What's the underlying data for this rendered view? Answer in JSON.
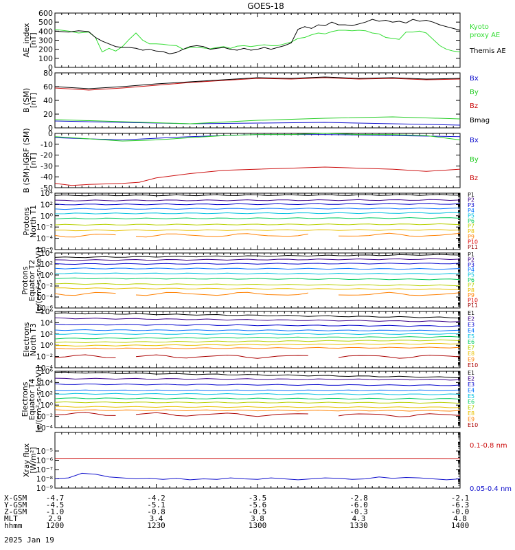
{
  "figure": {
    "title": "GOES-18",
    "date": "2025 Jan 19",
    "colors": {
      "black": "#000000",
      "green": "#22cc22",
      "red": "#cc1010",
      "blue": "#1010cc",
      "ae_green": "#33dd33"
    }
  },
  "xaxis": {
    "ticks": [
      "1200",
      "1230",
      "1300",
      "1330",
      "1400"
    ],
    "rows": [
      {
        "label": "X-GSM",
        "values": [
          "-4.7",
          "-4.2",
          "-3.5",
          "-2.8",
          "-2.1"
        ]
      },
      {
        "label": "Y-GSM",
        "values": [
          "-4.5",
          "-5.1",
          "-5.6",
          "-6.0",
          "-6.3"
        ]
      },
      {
        "label": "Z-GSM",
        "values": [
          "-1.0",
          "-0.8",
          "-0.5",
          "-0.3",
          "-0.0"
        ]
      },
      {
        "label": "MLT",
        "values": [
          "2.9",
          "3.4",
          "3.8",
          "4.3",
          "4.8"
        ]
      },
      {
        "label": "hhmm",
        "values": [
          "1200",
          "1230",
          "1300",
          "1330",
          "1400"
        ]
      }
    ]
  },
  "chart_data": [
    {
      "type": "line",
      "id": "ae",
      "ylabel": [
        "AE_index",
        "[nT]"
      ],
      "ylim": [
        0,
        600
      ],
      "log": false,
      "ticks": [
        "0",
        "100",
        "200",
        "300",
        "400",
        "500",
        "600"
      ],
      "tick_values": [
        0,
        100,
        200,
        300,
        400,
        500,
        600
      ],
      "series": [
        {
          "name": "Kyoto proxy AE",
          "legend": [
            "Kyoto",
            "proxy AE"
          ],
          "color": "#33dd33",
          "x": [
            0,
            2,
            4,
            7,
            10,
            12,
            14,
            16,
            18,
            20,
            22,
            24,
            26,
            28,
            30,
            32,
            34,
            36,
            38,
            40,
            42,
            44,
            46,
            48,
            50,
            52,
            54,
            56,
            58,
            60,
            62,
            64,
            66,
            68,
            70,
            72,
            74,
            76,
            78,
            80,
            82,
            84,
            86,
            88,
            90,
            92,
            94,
            96,
            98,
            100,
            102,
            104,
            106,
            108,
            110,
            112,
            114,
            116,
            118,
            120
          ],
          "y": [
            420,
            410,
            400,
            380,
            390,
            330,
            170,
            210,
            180,
            230,
            310,
            380,
            300,
            260,
            260,
            255,
            245,
            240,
            200,
            220,
            220,
            215,
            205,
            220,
            230,
            210,
            235,
            240,
            230,
            240,
            250,
            240,
            240,
            260,
            280,
            320,
            330,
            360,
            380,
            370,
            395,
            410,
            410,
            405,
            410,
            405,
            380,
            370,
            330,
            320,
            310,
            390,
            390,
            400,
            380,
            310,
            240,
            200,
            180,
            170
          ]
        },
        {
          "name": "Themis AE",
          "legend": [
            "Themis AE"
          ],
          "color": "#000000",
          "x": [
            0,
            2,
            4,
            7,
            10,
            12,
            14,
            16,
            18,
            20,
            22,
            24,
            26,
            28,
            30,
            32,
            34,
            36,
            38,
            40,
            42,
            44,
            46,
            48,
            50,
            52,
            54,
            56,
            58,
            60,
            62,
            64,
            66,
            68,
            70,
            72,
            74,
            76,
            78,
            80,
            82,
            84,
            86,
            88,
            90,
            92,
            94,
            96,
            98,
            100,
            102,
            104,
            106,
            108,
            110,
            112,
            114,
            116,
            118,
            120
          ],
          "y": [
            400,
            395,
            390,
            405,
            395,
            330,
            290,
            260,
            230,
            220,
            220,
            210,
            190,
            200,
            180,
            175,
            150,
            165,
            200,
            230,
            240,
            230,
            200,
            210,
            220,
            200,
            190,
            210,
            190,
            200,
            220,
            200,
            220,
            240,
            270,
            420,
            450,
            430,
            470,
            460,
            500,
            470,
            470,
            460,
            480,
            500,
            530,
            510,
            520,
            500,
            510,
            490,
            530,
            510,
            520,
            500,
            470,
            450,
            430,
            410
          ]
        }
      ]
    },
    {
      "type": "line",
      "id": "b_sm",
      "ylabel": [
        "B (SM)",
        "[nT]"
      ],
      "ylim": [
        0,
        80
      ],
      "log": false,
      "ticks": [
        "0",
        "20",
        "40",
        "60",
        "80"
      ],
      "tick_values": [
        0,
        20,
        40,
        60,
        80
      ],
      "series": [
        {
          "name": "Bx",
          "color": "#1010cc",
          "x": [
            0,
            20,
            40,
            60,
            80,
            100,
            120
          ],
          "y": [
            10,
            8,
            6,
            7,
            8,
            6,
            4
          ]
        },
        {
          "name": "By",
          "color": "#22cc22",
          "x": [
            0,
            20,
            40,
            60,
            80,
            100,
            120
          ],
          "y": [
            12,
            9,
            6,
            11,
            14,
            16,
            13
          ]
        },
        {
          "name": "Bz",
          "color": "#cc1010",
          "x": [
            0,
            10,
            20,
            30,
            40,
            50,
            60,
            70,
            80,
            90,
            100,
            110,
            120
          ],
          "y": [
            58,
            55,
            58,
            62,
            66,
            69,
            72,
            71,
            73,
            71,
            72,
            70,
            71
          ]
        },
        {
          "name": "Bmag",
          "color": "#000000",
          "x": [
            0,
            10,
            20,
            30,
            40,
            50,
            60,
            70,
            80,
            90,
            100,
            110,
            120
          ],
          "y": [
            60,
            57,
            60,
            64,
            67,
            70,
            73,
            72,
            74,
            72,
            73,
            71,
            72
          ]
        }
      ]
    },
    {
      "type": "line",
      "id": "b_igrf",
      "ylabel": [
        "B (SM)-IGRF (SM)",
        "[nT]"
      ],
      "ylim": [
        -50,
        0
      ],
      "log": false,
      "ticks": [
        "-50",
        "-40",
        "-30",
        "-20",
        "-10",
        "0"
      ],
      "tick_values": [
        -50,
        -40,
        -30,
        -20,
        -10,
        0
      ],
      "series": [
        {
          "name": "Bx",
          "color": "#1010cc",
          "x": [
            0,
            20,
            40,
            60,
            80,
            100,
            120
          ],
          "y": [
            -4,
            -6,
            -3,
            -1,
            -1,
            -2,
            -3
          ]
        },
        {
          "name": "By",
          "color": "#22cc22",
          "x": [
            0,
            10,
            20,
            30,
            40,
            50,
            60,
            70,
            80,
            90,
            100,
            110,
            120
          ],
          "y": [
            -3,
            -5,
            -7,
            -6,
            -4,
            -2,
            -1,
            -1,
            0,
            -1,
            -1,
            -2,
            -6
          ]
        },
        {
          "name": "Bz",
          "color": "#cc1010",
          "x": [
            0,
            5,
            10,
            20,
            25,
            30,
            40,
            50,
            60,
            70,
            80,
            90,
            100,
            110,
            120
          ],
          "y": [
            -46,
            -48,
            -47,
            -46,
            -45,
            -41,
            -37,
            -34,
            -33,
            -32,
            -31,
            -32,
            -33,
            -35,
            -33
          ]
        }
      ]
    },
    {
      "type": "line",
      "id": "protons_t1",
      "ylabel": [
        "Protons",
        "North T1"
      ],
      "ylim": [
        -6,
        4
      ],
      "log": true,
      "ticks": [
        "10⁻⁶",
        "10⁻⁴",
        "10⁻²",
        "10⁰",
        "10²",
        "10⁴"
      ],
      "tick_values": [
        -6,
        -4,
        -2,
        0,
        2,
        4
      ],
      "channels": [
        {
          "name": "P1",
          "color": "#000000",
          "y0": 3.6,
          "y1": 3.7
        },
        {
          "name": "P2",
          "color": "#3a0088",
          "y0": 2.7,
          "y1": 2.8
        },
        {
          "name": "P3",
          "color": "#0000cc",
          "y0": 2.0,
          "y1": 2.1
        },
        {
          "name": "P4",
          "color": "#0070ff",
          "y0": 1.2,
          "y1": 1.3
        },
        {
          "name": "P5",
          "color": "#00c0e0",
          "y0": 0.4,
          "y1": 0.5
        },
        {
          "name": "P6",
          "color": "#00cc60",
          "y0": -0.5,
          "y1": -0.4
        },
        {
          "name": "P7",
          "color": "#b8d000",
          "y0": -1.6,
          "y1": -1.5
        },
        {
          "name": "P8",
          "color": "#e8c000",
          "y0": -2.6,
          "y1": -2.5
        },
        {
          "name": "P9",
          "color": "#ff8000",
          "y0": -3.5,
          "y1": -3.4,
          "gappy": true
        },
        {
          "name": "P10",
          "color": "#dd0000",
          "y0": null,
          "y1": null
        },
        {
          "name": "P11",
          "color": "#990000",
          "y0": null,
          "y1": null
        }
      ]
    },
    {
      "type": "line",
      "id": "protons_t2",
      "ylabel": [
        "Protons",
        "Equator T2",
        "[p/(cm²-s-sr-keV)]"
      ],
      "ylim": [
        -6,
        4
      ],
      "log": true,
      "ticks": [
        "10⁻⁶",
        "10⁻⁴",
        "10⁻²",
        "10⁰",
        "10²",
        "10⁴"
      ],
      "tick_values": [
        -6,
        -4,
        -2,
        0,
        2,
        4
      ],
      "channels": [
        {
          "name": "P1",
          "color": "#000000",
          "y0": 3.2,
          "y1": 3.7
        },
        {
          "name": "P2",
          "color": "#3a0088",
          "y0": 2.7,
          "y1": 2.9
        },
        {
          "name": "P3",
          "color": "#0000cc",
          "y0": 2.0,
          "y1": 2.1
        },
        {
          "name": "P4",
          "color": "#0070ff",
          "y0": 1.2,
          "y1": 1.1
        },
        {
          "name": "P5",
          "color": "#00c0e0",
          "y0": 0.3,
          "y1": 0.2
        },
        {
          "name": "P6",
          "color": "#00cc60",
          "y0": -0.6,
          "y1": -0.8
        },
        {
          "name": "P7",
          "color": "#b8d000",
          "y0": -1.6,
          "y1": -1.9
        },
        {
          "name": "P8",
          "color": "#e8c000",
          "y0": -2.4,
          "y1": -2.6
        },
        {
          "name": "P9",
          "color": "#ff8000",
          "y0": -3.4,
          "y1": -3.5,
          "gappy": true
        },
        {
          "name": "P10",
          "color": "#dd0000",
          "y0": null,
          "y1": null
        },
        {
          "name": "P11",
          "color": "#990000",
          "y0": null,
          "y1": null
        }
      ]
    },
    {
      "type": "line",
      "id": "electrons_t3",
      "ylabel": [
        "Electrons",
        "North T3"
      ],
      "ylim": [
        -4,
        6
      ],
      "log": true,
      "ticks": [
        "10⁻⁴",
        "10⁻²",
        "10⁰",
        "10²",
        "10⁴",
        "10⁶"
      ],
      "tick_values": [
        -4,
        -2,
        0,
        2,
        4,
        6
      ],
      "channels": [
        {
          "name": "E1",
          "color": "#000000",
          "y0": 5.7,
          "y1": 4.9
        },
        {
          "name": "E2",
          "color": "#3a0088",
          "y0": 4.8,
          "y1": 4.2
        },
        {
          "name": "E3",
          "color": "#0000cc",
          "y0": 3.7,
          "y1": 3.4
        },
        {
          "name": "E4",
          "color": "#0070ff",
          "y0": 2.7,
          "y1": 2.6
        },
        {
          "name": "E5",
          "color": "#00c0e0",
          "y0": 2.0,
          "y1": 2.0
        },
        {
          "name": "E6",
          "color": "#00cc60",
          "y0": 1.2,
          "y1": 1.5
        },
        {
          "name": "E7",
          "color": "#b8d000",
          "y0": 0.5,
          "y1": 0.9
        },
        {
          "name": "E8",
          "color": "#e8c000",
          "y0": -0.1,
          "y1": 0.3
        },
        {
          "name": "E9",
          "color": "#ff8000",
          "y0": -0.6,
          "y1": -0.4
        },
        {
          "name": "E10",
          "color": "#aa0000",
          "y0": -2.0,
          "y1": -2.0,
          "gappy": true
        }
      ]
    },
    {
      "type": "line",
      "id": "electrons_t4",
      "ylabel": [
        "Electrons",
        "Equator T4",
        "[e/(cm²-s-sr-keV)]"
      ],
      "ylim": [
        -4,
        6
      ],
      "log": true,
      "ticks": [
        "10⁻⁴",
        "10⁻²",
        "10⁰",
        "10²",
        "10⁴",
        "10⁶"
      ],
      "tick_values": [
        -4,
        -2,
        0,
        2,
        4,
        6
      ],
      "channels": [
        {
          "name": "E1",
          "color": "#000000",
          "y0": 5.8,
          "y1": 4.9
        },
        {
          "name": "E2",
          "color": "#3a0088",
          "y0": 4.7,
          "y1": 4.5
        },
        {
          "name": "E3",
          "color": "#0000cc",
          "y0": 3.7,
          "y1": 3.5
        },
        {
          "name": "E4",
          "color": "#0070ff",
          "y0": 2.6,
          "y1": 2.6
        },
        {
          "name": "E5",
          "color": "#00c0e0",
          "y0": 2.0,
          "y1": 1.9
        },
        {
          "name": "E6",
          "color": "#00cc60",
          "y0": 1.2,
          "y1": 1.1
        },
        {
          "name": "E7",
          "color": "#b8d000",
          "y0": 0.5,
          "y1": 0.4
        },
        {
          "name": "E8",
          "color": "#e8c000",
          "y0": -0.3,
          "y1": -0.4
        },
        {
          "name": "E9",
          "color": "#ff8000",
          "y0": -0.9,
          "y1": -1.0
        },
        {
          "name": "E10",
          "color": "#aa0000",
          "y0": -1.6,
          "y1": -1.8,
          "gappy": true
        }
      ]
    },
    {
      "type": "line",
      "id": "xray",
      "ylabel": [
        "Xray flux",
        "[W/m²]"
      ],
      "ylim": [
        -9,
        -3
      ],
      "log": true,
      "ticks": [
        "10⁻⁹",
        "10⁻⁸",
        "10⁻⁷",
        "10⁻⁶",
        "10⁻⁵"
      ],
      "tick_values": [
        -9,
        -8,
        -7,
        -6,
        -5
      ],
      "series": [
        {
          "name": "0.1-0.8 nm",
          "legend": [
            "0.1-0.8 nm"
          ],
          "color": "#cc1010",
          "x": [
            0,
            10,
            20,
            30,
            40,
            50,
            60,
            70,
            80,
            90,
            100,
            110,
            120
          ],
          "y": [
            -5.8,
            -5.78,
            -5.8,
            -5.81,
            -5.79,
            -5.8,
            -5.8,
            -5.79,
            -5.8,
            -5.81,
            -5.8,
            -5.8,
            -5.82
          ]
        },
        {
          "name": "0.05-0.4 nm",
          "legend": [
            "0.05-0.4 nm"
          ],
          "color": "#1010cc",
          "x": [
            0,
            4,
            8,
            12,
            16,
            20,
            24,
            28,
            32,
            36,
            40,
            44,
            48,
            52,
            56,
            60,
            64,
            68,
            72,
            76,
            80,
            84,
            88,
            92,
            96,
            100,
            104,
            108,
            112,
            116,
            120
          ],
          "y": [
            -8.0,
            -7.9,
            -7.4,
            -7.5,
            -7.8,
            -7.9,
            -8.0,
            -7.95,
            -8.05,
            -7.95,
            -8.1,
            -8.0,
            -8.05,
            -7.9,
            -8.0,
            -8.05,
            -7.9,
            -8.0,
            -8.1,
            -8.0,
            -7.9,
            -7.95,
            -8.05,
            -8.0,
            -7.8,
            -7.95,
            -7.85,
            -7.9,
            -8.0,
            -8.1,
            -8.0
          ]
        }
      ]
    }
  ]
}
